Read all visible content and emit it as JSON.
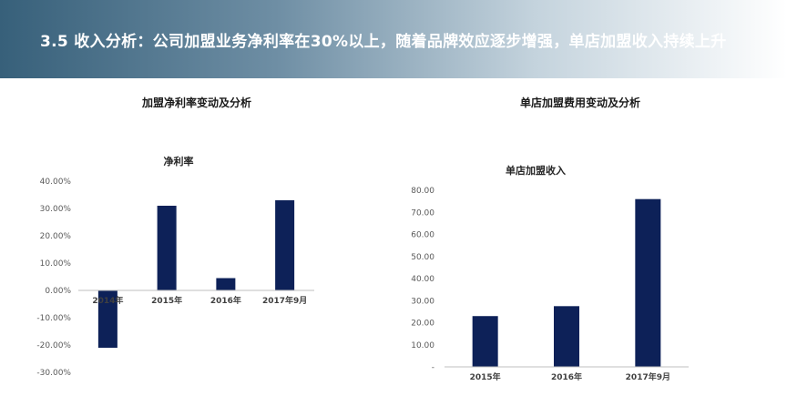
{
  "header": {
    "title": "3.5  收入分析：公司加盟业务净利率在30%以上，随着品牌效应逐步增强，单店加盟收入持续上升"
  },
  "left": {
    "section_title": "加盟净利率变动及分析"
  },
  "right": {
    "section_title": "单店加盟费用变动及分析"
  },
  "colors": {
    "bar": "#0d2158",
    "axis": "#bfbfbf",
    "tick": "#595959"
  },
  "chart_data": [
    {
      "type": "bar",
      "title": "净利率",
      "categories": [
        "2014年",
        "2015年",
        "2016年",
        "2017年9月"
      ],
      "series": [
        {
          "values": [
            -0.21,
            0.31,
            0.045,
            0.33
          ]
        }
      ],
      "ylim": [
        -0.3,
        0.4
      ],
      "yticks": [
        0.4,
        0.3,
        0.2,
        0.1,
        0.0,
        -0.1,
        -0.2,
        -0.3
      ],
      "ytick_labels": [
        "40.00%",
        "30.00%",
        "20.00%",
        "10.00%",
        "0.00%",
        "-10.00%",
        "-20.00%",
        "-30.00%"
      ],
      "grid": false,
      "xlabel": "",
      "ylabel": ""
    },
    {
      "type": "bar",
      "title": "单店加盟收入",
      "categories": [
        "2015年",
        "2016年",
        "2017年9月"
      ],
      "series": [
        {
          "values": [
            23,
            27.5,
            76
          ]
        }
      ],
      "ylim": [
        0,
        80
      ],
      "yticks": [
        80,
        70,
        60,
        50,
        40,
        30,
        20,
        10,
        0
      ],
      "ytick_labels": [
        "80.00",
        "70.00",
        "60.00",
        "50.00",
        "40.00",
        "30.00",
        "20.00",
        "10.00",
        "-"
      ],
      "grid": false,
      "xlabel": "",
      "ylabel": ""
    }
  ]
}
